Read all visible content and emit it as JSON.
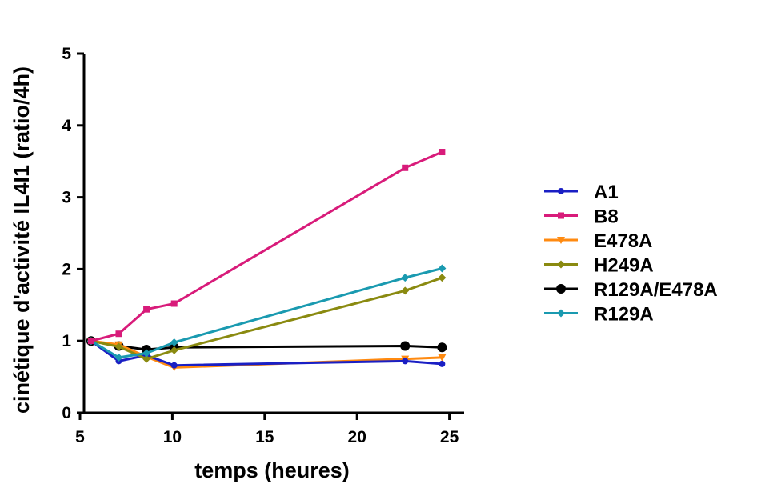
{
  "chart_data": {
    "type": "line",
    "xlabel": "temps (heures)",
    "ylabel": "cinétique d'activité IL4I1 (ratio/4h)",
    "xlim": [
      5,
      26
    ],
    "ylim": [
      0,
      5
    ],
    "xticks": [
      5,
      10,
      15,
      20,
      25
    ],
    "yticks": [
      0,
      1,
      2,
      3,
      4,
      5
    ],
    "grid": false,
    "legend_position": "right",
    "x": [
      5.6,
      7.1,
      8.6,
      10.1,
      22.6,
      24.6
    ],
    "series": [
      {
        "name": "A1",
        "color": "#1a1fc4",
        "marker": "circle-small",
        "values": [
          1.0,
          0.72,
          0.8,
          0.66,
          0.72,
          0.68
        ]
      },
      {
        "name": "B8",
        "color": "#d81b7a",
        "marker": "square",
        "values": [
          1.0,
          1.1,
          1.44,
          1.52,
          3.41,
          3.63
        ]
      },
      {
        "name": "E478A",
        "color": "#ff8a10",
        "marker": "triangle-down",
        "values": [
          1.0,
          0.95,
          0.78,
          0.63,
          0.75,
          0.77
        ]
      },
      {
        "name": "H249A",
        "color": "#8a8a10",
        "marker": "diamond",
        "values": [
          1.0,
          0.92,
          0.75,
          0.87,
          1.7,
          1.88
        ]
      },
      {
        "name": "R129A/E478A",
        "color": "#000000",
        "marker": "circle-large",
        "values": [
          1.0,
          0.93,
          0.88,
          0.91,
          0.93,
          0.91
        ]
      },
      {
        "name": "R129A",
        "color": "#1a9ab0",
        "marker": "diamond",
        "values": [
          1.0,
          0.77,
          0.83,
          0.98,
          1.88,
          2.01
        ]
      }
    ]
  }
}
